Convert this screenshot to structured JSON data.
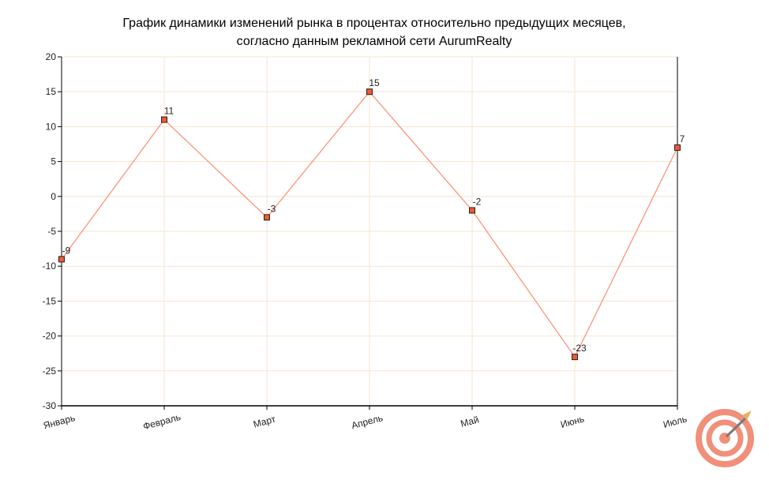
{
  "colors": {
    "line": "#ff8c6e",
    "marker_fill": "#f05a32",
    "marker_stroke": "#222222",
    "grid": "#f5e6cf",
    "axis": "#000000",
    "logo_ring": "#f0907a",
    "logo_arrow_shaft": "#7a7a7a",
    "logo_arrow_tip": "#e8b05a"
  },
  "logo": {
    "icon": "target-with-arrow-icon"
  },
  "chart_data": {
    "type": "line",
    "title": "График динамики изменений рынка в процентах относительно предыдущих месяцев,",
    "subtitle": "согласно данным рекламной сети AurumRealty",
    "categories": [
      "Январь",
      "Февраль",
      "Март",
      "Апрель",
      "Май",
      "Июнь",
      "Июль"
    ],
    "series": [
      {
        "values": [
          -9,
          11,
          -3,
          15,
          -2,
          -23,
          7
        ],
        "labels": [
          "-9",
          "11",
          "-3",
          "15",
          "-2",
          "-23",
          "7"
        ]
      }
    ],
    "ylim": [
      -30,
      20
    ],
    "yticks": [
      20,
      15,
      10,
      5,
      0,
      -5,
      -10,
      -15,
      -20,
      -25,
      -30
    ],
    "ytick_labels": [
      "20",
      "15",
      "10",
      "5",
      "0",
      "-5",
      "-10",
      "-15",
      "-20",
      "-25",
      "-30"
    ],
    "grid": true,
    "xlabel": "",
    "ylabel": ""
  }
}
